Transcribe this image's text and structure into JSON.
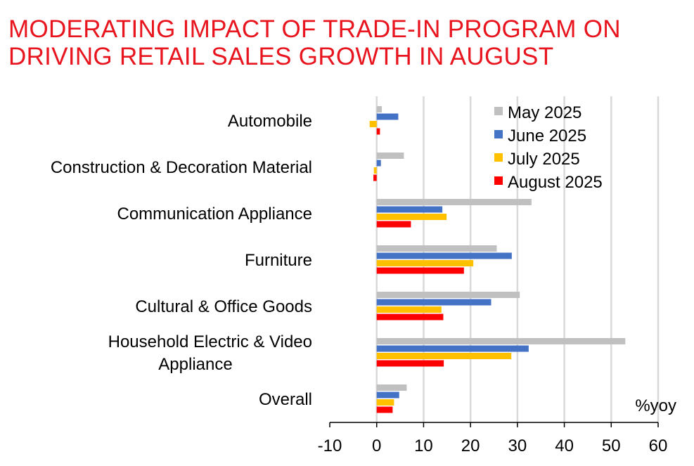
{
  "title_lines": [
    "MODERATING IMPACT OF TRADE-IN PROGRAM ON",
    "DRIVING RETAIL SALES GROWTH IN AUGUST"
  ],
  "chart_data": {
    "type": "bar",
    "orientation": "horizontal",
    "title": "MODERATING IMPACT OF TRADE-IN PROGRAM ON DRIVING RETAIL SALES GROWTH IN AUGUST",
    "unit_label": "%yoy",
    "categories": [
      [
        "Automobile"
      ],
      [
        "Construction & Decoration Material"
      ],
      [
        "Communication Appliance"
      ],
      [
        "Furniture"
      ],
      [
        "Cultural & Office Goods"
      ],
      [
        "Household Electric & Video",
        "Appliance"
      ],
      [
        "Overall"
      ]
    ],
    "series": [
      {
        "name": "May 2025",
        "color": "#c0c0c0",
        "values": [
          1.1,
          5.8,
          33.0,
          25.6,
          30.5,
          53.0,
          6.4
        ]
      },
      {
        "name": "June 2025",
        "color": "#4472c4",
        "values": [
          4.6,
          0.9,
          14.0,
          28.8,
          24.4,
          32.4,
          4.8
        ]
      },
      {
        "name": "July 2025",
        "color": "#ffc000",
        "values": [
          -1.5,
          -0.6,
          14.9,
          20.6,
          13.8,
          28.7,
          3.7
        ]
      },
      {
        "name": "August 2025",
        "color": "#ff0000",
        "values": [
          0.7,
          -0.7,
          7.3,
          18.6,
          14.2,
          14.3,
          3.4
        ]
      }
    ],
    "xlim": [
      -10,
      60
    ],
    "xticks": [
      -10,
      0,
      10,
      20,
      30,
      40,
      50,
      60
    ],
    "grid": true,
    "legend_position": "top-right"
  }
}
